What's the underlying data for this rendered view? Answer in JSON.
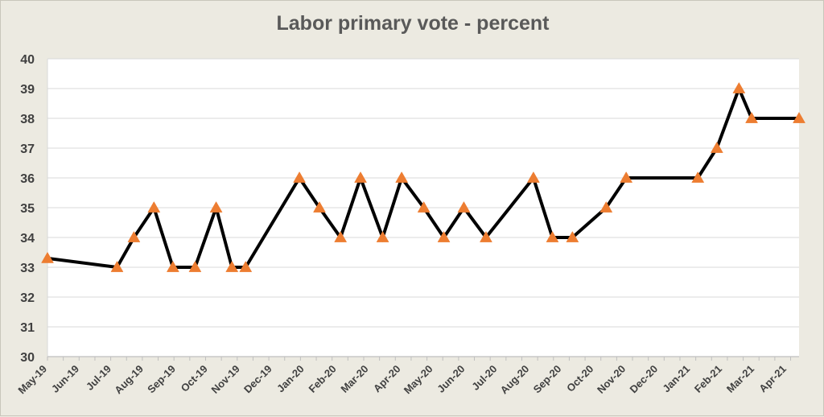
{
  "chart_data": {
    "type": "line",
    "title": "Labor primary vote - percent",
    "xlabel": "",
    "ylabel": "",
    "ylim": [
      30,
      40
    ],
    "y_ticks": [
      "30",
      "31",
      "32",
      "33",
      "34",
      "35",
      "36",
      "37",
      "38",
      "39",
      "40"
    ],
    "x_tick_labels": [
      "May-19",
      "Jun-19",
      "Jul-19",
      "Aug-19",
      "Sep-19",
      "Oct-19",
      "Nov-19",
      "Dec-19",
      "Jan-20",
      "Feb-20",
      "Mar-20",
      "Apr-20",
      "May-20",
      "Jun-20",
      "Jul-20",
      "Aug-20",
      "Sep-20",
      "Oct-20",
      "Nov-20",
      "Dec-20",
      "Jan-21",
      "Feb-21",
      "Mar-21",
      "Apr-21"
    ],
    "xlim": [
      "2019-05-18",
      "2021-04-30"
    ],
    "grid": true,
    "line_color": "#000000",
    "marker_color": "#ed7d31",
    "marker": "triangle",
    "series": [
      {
        "points": [
          {
            "x": "2019-05-18",
            "y": 33.3
          },
          {
            "x": "2019-07-23",
            "y": 33
          },
          {
            "x": "2019-08-08",
            "y": 34
          },
          {
            "x": "2019-08-27",
            "y": 35
          },
          {
            "x": "2019-09-14",
            "y": 33
          },
          {
            "x": "2019-10-05",
            "y": 33
          },
          {
            "x": "2019-10-25",
            "y": 35
          },
          {
            "x": "2019-11-09",
            "y": 33
          },
          {
            "x": "2019-11-22",
            "y": 33
          },
          {
            "x": "2020-01-12",
            "y": 36
          },
          {
            "x": "2020-01-31",
            "y": 35
          },
          {
            "x": "2020-02-20",
            "y": 34
          },
          {
            "x": "2020-03-10",
            "y": 36
          },
          {
            "x": "2020-03-31",
            "y": 34
          },
          {
            "x": "2020-04-18",
            "y": 36
          },
          {
            "x": "2020-05-09",
            "y": 35
          },
          {
            "x": "2020-05-28",
            "y": 34
          },
          {
            "x": "2020-06-16",
            "y": 35
          },
          {
            "x": "2020-07-07",
            "y": 34
          },
          {
            "x": "2020-08-21",
            "y": 36
          },
          {
            "x": "2020-09-08",
            "y": 34
          },
          {
            "x": "2020-09-27",
            "y": 34
          },
          {
            "x": "2020-10-29",
            "y": 35
          },
          {
            "x": "2020-11-17",
            "y": 36
          },
          {
            "x": "2021-01-24",
            "y": 36
          },
          {
            "x": "2021-02-11",
            "y": 37
          },
          {
            "x": "2021-03-04",
            "y": 39
          },
          {
            "x": "2021-03-16",
            "y": 38
          },
          {
            "x": "2021-04-30",
            "y": 38
          }
        ]
      }
    ]
  }
}
